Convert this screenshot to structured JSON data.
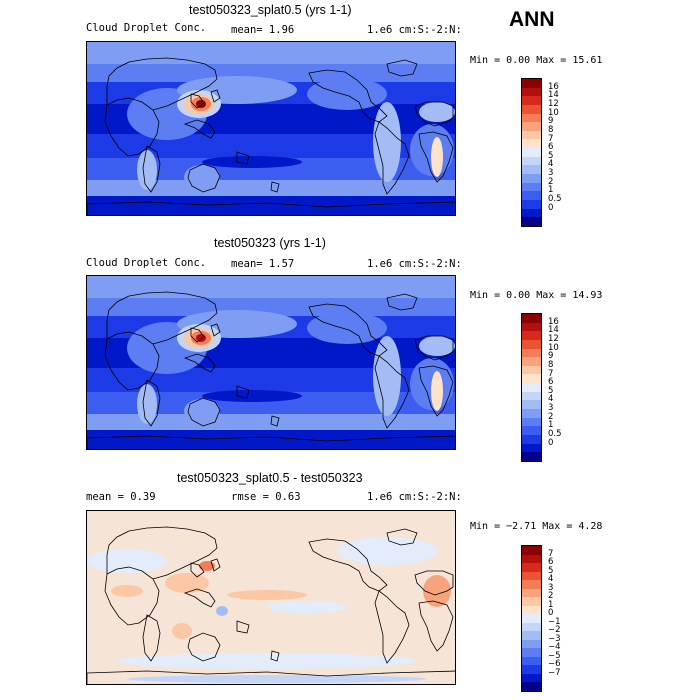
{
  "season": "ANN",
  "palette_seq": [
    "#00008b",
    "#0018c8",
    "#1c3ae6",
    "#3b5ef0",
    "#5c7ef2",
    "#7f9df3",
    "#a3bcf5",
    "#c4d6f8",
    "#e2ecfa",
    "#fde3cc",
    "#fbc7a4",
    "#f7a47c",
    "#f27d58",
    "#ea5433",
    "#d72a1c",
    "#b3100d",
    "#8b0000"
  ],
  "palette_div": [
    "#00008b",
    "#0018c8",
    "#1c3ae6",
    "#3b5ef0",
    "#5c7ef2",
    "#7f9df3",
    "#a3bcf5",
    "#c4d6f8",
    "#e2ecfa",
    "#fde3cc",
    "#fbc7a4",
    "#f7a47c",
    "#f27d58",
    "#ea5433",
    "#d72a1c",
    "#b3100d",
    "#8b0000"
  ],
  "panels": [
    {
      "title": "test050323_splat0.5 (yrs 1-1)",
      "left": "Cloud Droplet Conc.",
      "mid": "mean=   1.96",
      "right": "1.e6 cm:S:-2:N:",
      "minmax": "Min =   0.00 Max =  15.61",
      "levels": [
        "16",
        "14",
        "12",
        "10",
        "9",
        "8",
        "7",
        "6",
        "5",
        "4",
        "3",
        "2",
        "1",
        "0.5",
        "0"
      ],
      "field": "seq"
    },
    {
      "title": "test050323 (yrs 1-1)",
      "left": "Cloud Droplet Conc.",
      "mid": "mean=   1.57",
      "right": "1.e6 cm:S:-2:N:",
      "minmax": "Min =   0.00 Max =  14.93",
      "levels": [
        "16",
        "14",
        "12",
        "10",
        "9",
        "8",
        "7",
        "6",
        "5",
        "4",
        "3",
        "2",
        "1",
        "0.5",
        "0"
      ],
      "field": "seq"
    },
    {
      "title": "test050323_splat0.5 - test050323",
      "left": "mean =   0.39",
      "mid": "rmse =   0.63",
      "right": "1.e6 cm:S:-2:N:",
      "minmax": "Min =  −2.71 Max =   4.28",
      "levels": [
        "7",
        "6",
        "5",
        "4",
        "3",
        "2",
        "1",
        "0",
        "−1",
        "−2",
        "−3",
        "−4",
        "−5",
        "−6",
        "−7"
      ],
      "field": "diff"
    }
  ]
}
